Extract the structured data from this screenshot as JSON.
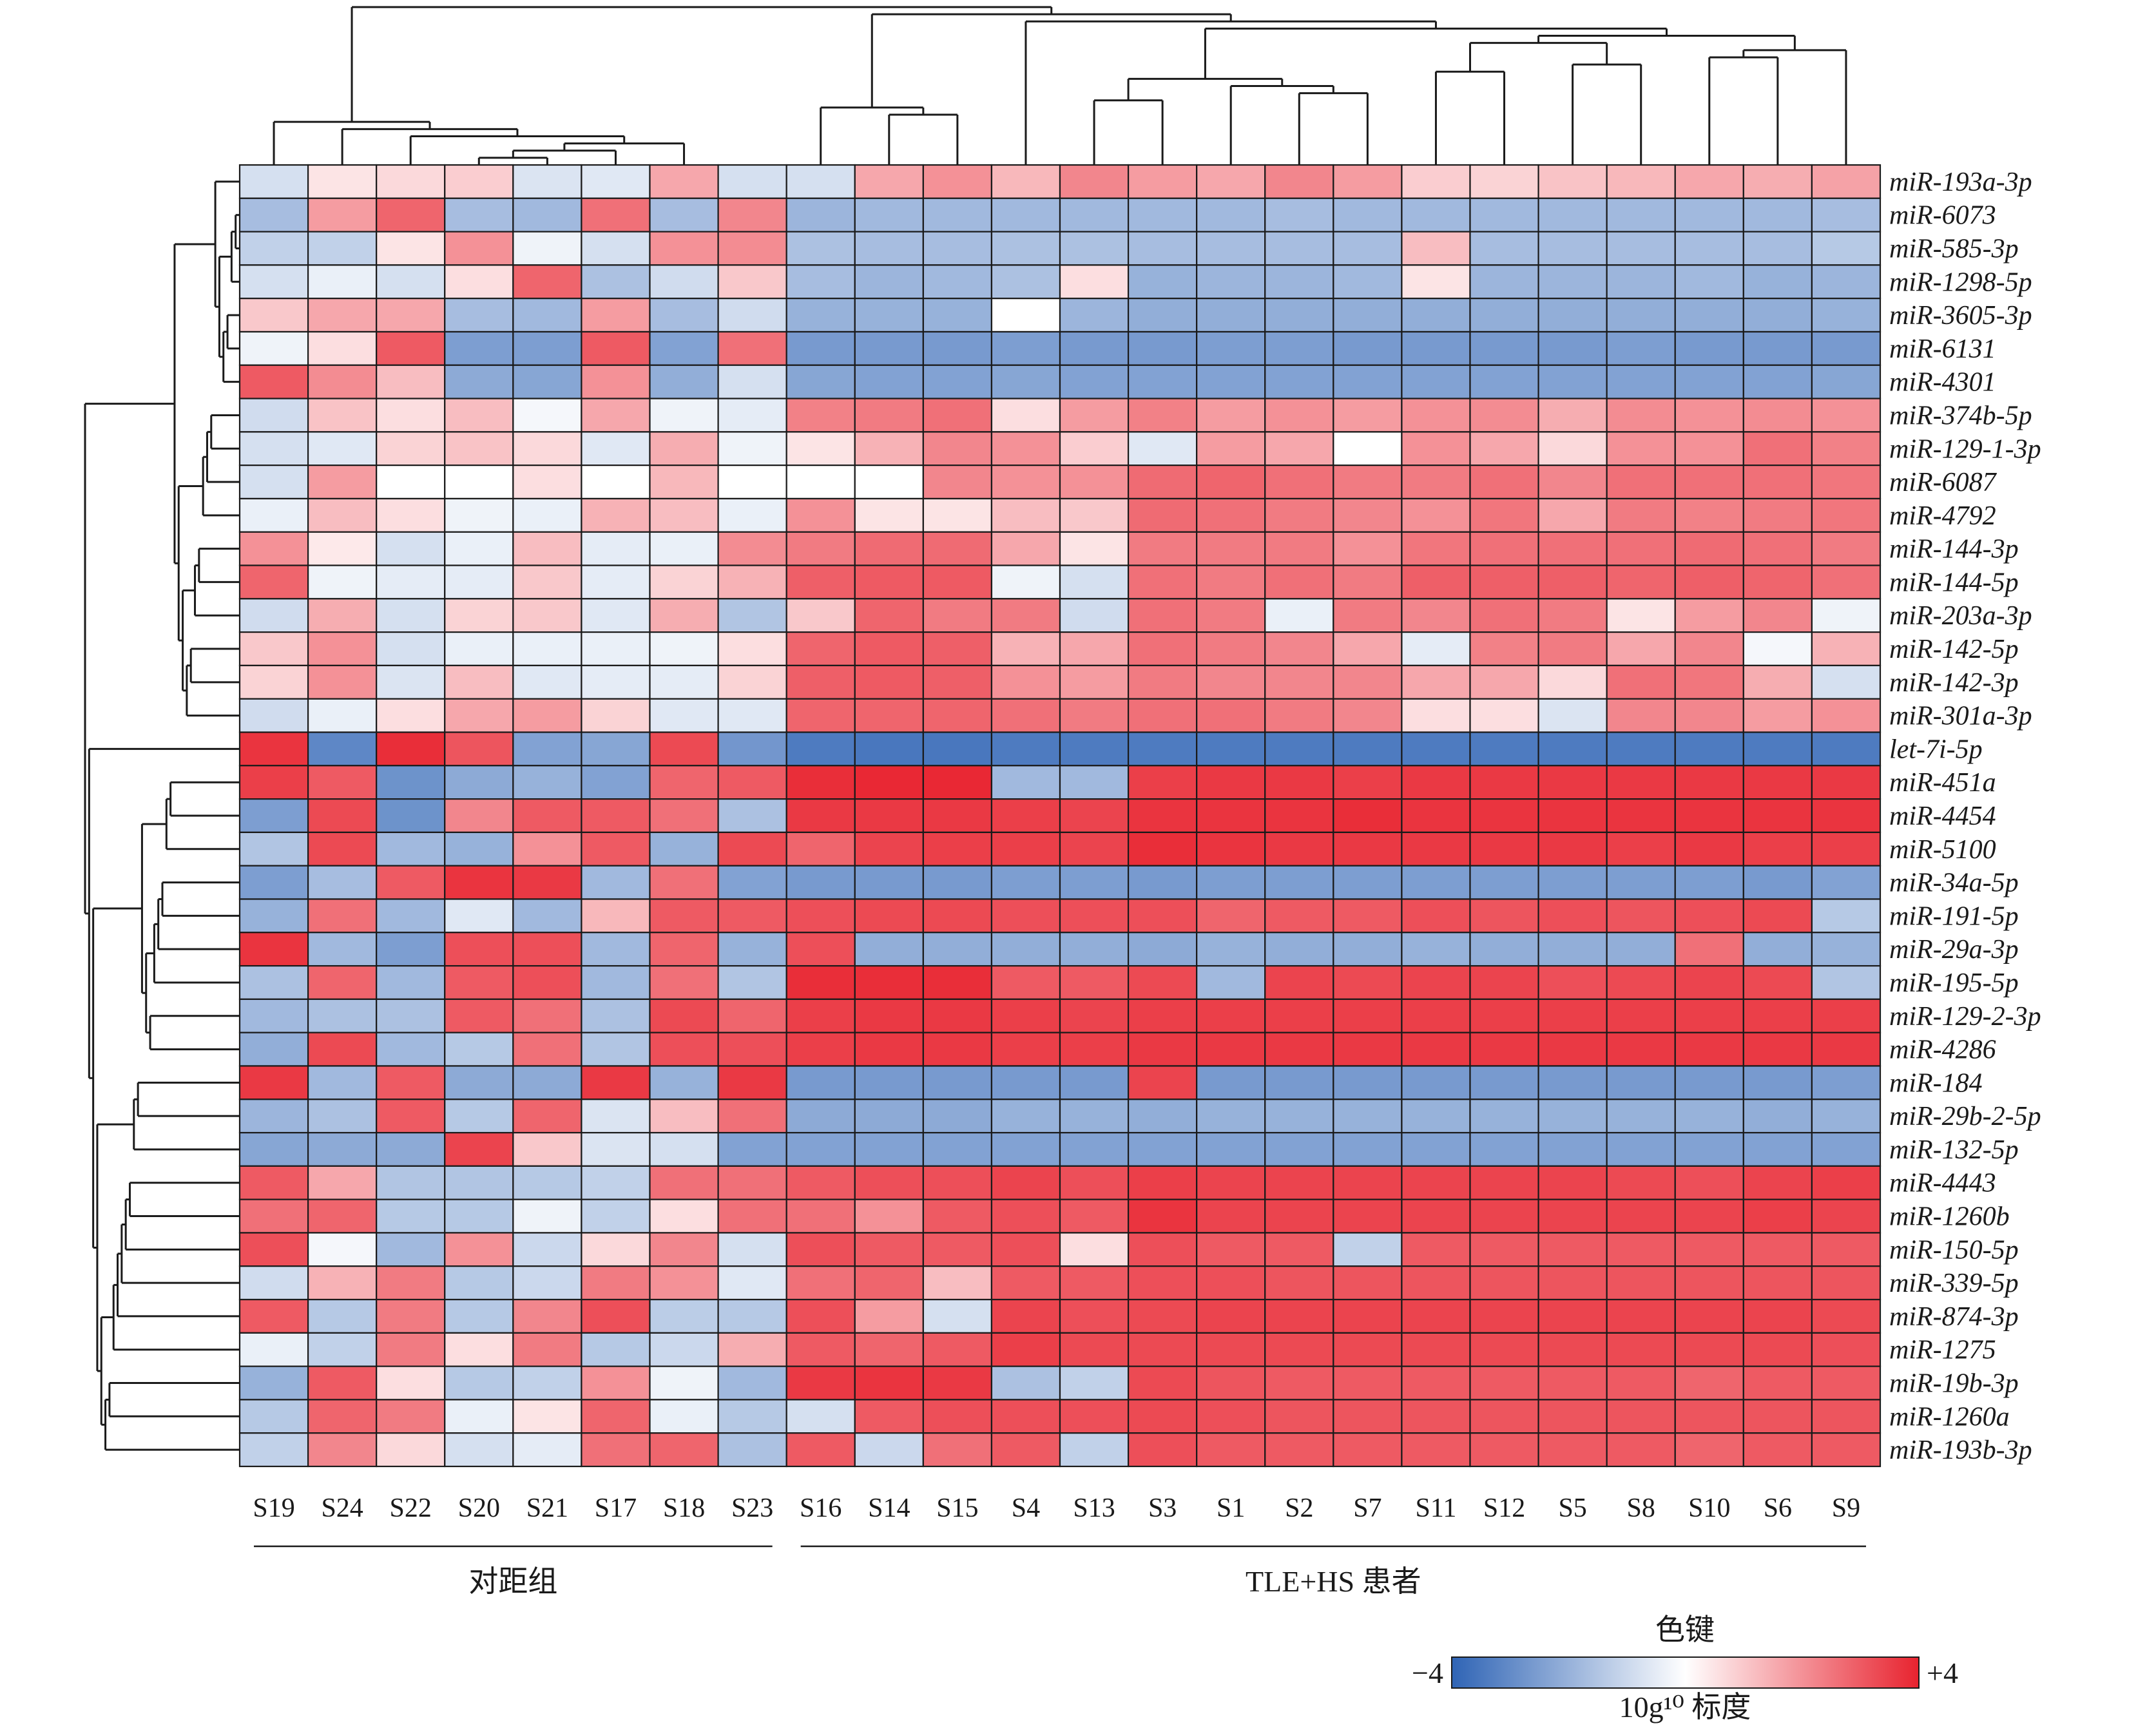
{
  "chart_data": {
    "type": "heatmap",
    "title": "",
    "columns": [
      "S19",
      "S24",
      "S22",
      "S20",
      "S21",
      "S17",
      "S18",
      "S23",
      "S16",
      "S14",
      "S15",
      "S4",
      "S13",
      "S3",
      "S1",
      "S2",
      "S7",
      "S11",
      "S12",
      "S5",
      "S8",
      "S10",
      "S6",
      "S9"
    ],
    "rows": [
      "miR-193a-3p",
      "miR-6073",
      "miR-585-3p",
      "miR-1298-5p",
      "miR-3605-3p",
      "miR-6131",
      "miR-4301",
      "miR-374b-5p",
      "miR-129-1-3p",
      "miR-6087",
      "miR-4792",
      "miR-144-3p",
      "miR-144-5p",
      "miR-203a-3p",
      "miR-142-5p",
      "miR-142-3p",
      "miR-301a-3p",
      "let-7i-5p",
      "miR-451a",
      "miR-4454",
      "miR-5100",
      "miR-34a-5p",
      "miR-191-5p",
      "miR-29a-3p",
      "miR-195-5p",
      "miR-129-2-3p",
      "miR-4286",
      "miR-184",
      "miR-29b-2-5p",
      "miR-132-5p",
      "miR-4443",
      "miR-1260b",
      "miR-150-5p",
      "miR-339-5p",
      "miR-874-3p",
      "miR-1275",
      "miR-19b-3p",
      "miR-1260a",
      "miR-193b-3p"
    ],
    "values": [
      [
        -0.8,
        0.5,
        0.7,
        0.9,
        -0.7,
        -0.6,
        1.6,
        -0.8,
        -0.8,
        1.6,
        2.0,
        1.3,
        2.2,
        1.8,
        1.6,
        2.2,
        1.8,
        0.9,
        0.8,
        1.1,
        1.3,
        1.6,
        1.5,
        1.7
      ],
      [
        -1.7,
        1.8,
        2.8,
        -1.7,
        -1.8,
        2.6,
        -1.7,
        2.2,
        -1.9,
        -1.8,
        -1.8,
        -1.8,
        -1.8,
        -1.8,
        -1.8,
        -1.7,
        -1.8,
        -1.8,
        -1.8,
        -1.8,
        -1.8,
        -1.8,
        -1.8,
        -1.7
      ],
      [
        -1.2,
        -1.2,
        0.5,
        2.0,
        -0.3,
        -0.8,
        2.0,
        2.1,
        -1.6,
        -1.7,
        -1.7,
        -1.6,
        -1.6,
        -1.7,
        -1.7,
        -1.7,
        -1.7,
        1.2,
        -1.7,
        -1.7,
        -1.7,
        -1.7,
        -1.7,
        -1.4
      ],
      [
        -0.8,
        -0.4,
        -0.8,
        0.6,
        2.8,
        -1.6,
        -0.9,
        1.0,
        -1.7,
        -1.9,
        -1.8,
        -1.6,
        0.6,
        -2.0,
        -1.9,
        -1.9,
        -1.8,
        0.5,
        -1.9,
        -1.9,
        -1.9,
        -1.8,
        -2.0,
        -1.9
      ],
      [
        1.0,
        1.6,
        1.6,
        -1.7,
        -1.8,
        1.8,
        -1.7,
        -0.9,
        -2.0,
        -2.0,
        -2.0,
        0.0,
        -1.9,
        -2.1,
        -2.1,
        -2.1,
        -2.1,
        -2.1,
        -2.1,
        -2.1,
        -2.1,
        -2.1,
        -2.1,
        -2.0
      ],
      [
        -0.3,
        0.6,
        3.0,
        -2.5,
        -2.5,
        3.0,
        -2.4,
        2.6,
        -2.6,
        -2.6,
        -2.6,
        -2.5,
        -2.6,
        -2.6,
        -2.5,
        -2.5,
        -2.6,
        -2.6,
        -2.6,
        -2.6,
        -2.5,
        -2.6,
        -2.6,
        -2.6
      ],
      [
        3.0,
        2.1,
        1.2,
        -2.2,
        -2.3,
        2.0,
        -2.1,
        -0.8,
        -2.3,
        -2.4,
        -2.4,
        -2.3,
        -2.4,
        -2.4,
        -2.4,
        -2.4,
        -2.4,
        -2.4,
        -2.4,
        -2.4,
        -2.4,
        -2.4,
        -2.4,
        -2.3
      ],
      [
        -0.9,
        1.1,
        0.6,
        1.2,
        -0.2,
        1.6,
        -0.3,
        -0.5,
        2.3,
        2.4,
        2.6,
        0.6,
        1.8,
        2.3,
        1.8,
        2.0,
        1.8,
        2.0,
        2.1,
        1.5,
        2.1,
        2.0,
        2.1,
        2.0
      ],
      [
        -0.8,
        -0.6,
        0.8,
        1.1,
        0.7,
        -0.6,
        1.5,
        -0.3,
        0.5,
        1.4,
        2.2,
        2.0,
        0.9,
        -0.6,
        1.8,
        1.6,
        0.0,
        2.0,
        1.6,
        0.7,
        2.0,
        2.0,
        2.6,
        2.3
      ],
      [
        -0.8,
        1.8,
        0.0,
        0.0,
        0.6,
        0.0,
        1.3,
        0.0,
        0.0,
        0.0,
        2.2,
        2.0,
        2.0,
        2.7,
        2.8,
        2.6,
        2.4,
        2.4,
        2.6,
        2.2,
        2.6,
        2.6,
        2.6,
        2.5
      ],
      [
        -0.4,
        1.2,
        0.6,
        -0.3,
        -0.4,
        1.4,
        1.2,
        -0.4,
        2.0,
        0.5,
        0.5,
        1.2,
        1.0,
        2.7,
        2.6,
        2.4,
        2.2,
        2.0,
        2.5,
        1.6,
        2.4,
        2.3,
        2.4,
        2.5
      ],
      [
        2.0,
        0.4,
        -0.8,
        -0.4,
        1.2,
        -0.5,
        -0.4,
        2.1,
        2.4,
        2.7,
        2.7,
        1.6,
        0.5,
        2.4,
        2.4,
        2.4,
        2.0,
        2.5,
        2.6,
        2.6,
        2.6,
        2.7,
        2.6,
        2.4
      ],
      [
        2.8,
        -0.3,
        -0.5,
        -0.5,
        1.0,
        -0.5,
        0.8,
        1.4,
        2.9,
        3.0,
        3.0,
        -0.3,
        -0.8,
        2.6,
        2.4,
        2.6,
        2.4,
        2.9,
        2.9,
        2.9,
        2.8,
        2.9,
        2.8,
        2.6
      ],
      [
        -0.9,
        1.5,
        -0.8,
        0.8,
        1.0,
        -0.6,
        1.5,
        -1.5,
        1.0,
        2.8,
        2.4,
        2.4,
        -0.9,
        2.6,
        2.4,
        -0.4,
        2.4,
        2.2,
        2.6,
        2.4,
        0.5,
        1.8,
        2.2,
        -0.3
      ],
      [
        1.0,
        2.0,
        -0.8,
        -0.4,
        -0.4,
        -0.4,
        -0.3,
        0.6,
        2.8,
        3.0,
        2.9,
        1.4,
        1.6,
        2.6,
        2.4,
        2.2,
        1.6,
        -0.5,
        2.3,
        2.4,
        1.6,
        2.2,
        -0.2,
        1.4
      ],
      [
        0.8,
        2.0,
        -0.7,
        1.2,
        -0.6,
        -0.5,
        -0.5,
        0.8,
        2.9,
        3.0,
        2.9,
        2.0,
        1.8,
        2.4,
        2.2,
        2.2,
        2.2,
        1.6,
        1.6,
        0.7,
        2.6,
        2.5,
        1.5,
        -0.8
      ],
      [
        -0.9,
        -0.4,
        0.6,
        1.6,
        1.8,
        0.8,
        -0.6,
        -0.6,
        2.8,
        2.8,
        2.8,
        2.6,
        2.4,
        2.6,
        2.6,
        2.4,
        2.2,
        0.6,
        0.6,
        -0.7,
        2.2,
        2.2,
        1.8,
        2.0
      ],
      [
        3.7,
        -3.1,
        3.8,
        3.1,
        -2.4,
        -2.3,
        3.3,
        -2.7,
        -3.4,
        -3.5,
        -3.5,
        -3.4,
        -3.4,
        -3.4,
        -3.4,
        -3.4,
        -3.4,
        -3.4,
        -3.4,
        -3.4,
        -3.4,
        -3.4,
        -3.4,
        -3.4
      ],
      [
        3.5,
        3.0,
        -2.8,
        -2.2,
        -2.0,
        -2.4,
        2.8,
        3.0,
        3.8,
        3.9,
        3.9,
        -1.8,
        -1.8,
        3.5,
        3.6,
        3.6,
        3.5,
        3.6,
        3.6,
        3.6,
        3.6,
        3.6,
        3.6,
        3.6
      ],
      [
        -2.5,
        3.3,
        -2.8,
        2.2,
        3.0,
        3.0,
        2.6,
        -1.6,
        3.6,
        3.6,
        3.6,
        3.5,
        3.4,
        3.7,
        3.7,
        3.7,
        3.8,
        3.7,
        3.7,
        3.7,
        3.7,
        3.7,
        3.7,
        3.7
      ],
      [
        -1.5,
        3.3,
        -1.8,
        -2.0,
        2.0,
        3.0,
        -2.0,
        3.3,
        2.8,
        3.4,
        3.5,
        3.5,
        3.4,
        3.8,
        3.7,
        3.6,
        3.6,
        3.6,
        3.6,
        3.6,
        3.5,
        3.6,
        3.5,
        3.5
      ],
      [
        -2.5,
        -1.7,
        3.0,
        3.7,
        3.6,
        -1.8,
        2.6,
        -2.4,
        -2.6,
        -2.6,
        -2.6,
        -2.5,
        -2.5,
        -2.6,
        -2.5,
        -2.5,
        -2.5,
        -2.5,
        -2.5,
        -2.5,
        -2.5,
        -2.5,
        -2.6,
        -2.4
      ],
      [
        -2.0,
        2.6,
        -1.8,
        -0.6,
        -1.8,
        1.3,
        3.0,
        3.0,
        3.2,
        3.3,
        3.3,
        3.2,
        3.2,
        3.2,
        2.8,
        3.0,
        3.0,
        3.2,
        3.1,
        3.2,
        3.1,
        3.2,
        3.3,
        -1.4
      ],
      [
        3.7,
        -1.8,
        -2.5,
        3.2,
        3.2,
        -1.8,
        2.8,
        -2.0,
        3.2,
        -2.1,
        -2.1,
        -2.1,
        -2.1,
        -2.2,
        -2.0,
        -2.1,
        -2.1,
        -2.0,
        -2.1,
        -2.1,
        -2.1,
        2.6,
        -2.1,
        -2.0
      ],
      [
        -1.6,
        2.8,
        -1.8,
        3.0,
        3.2,
        -1.8,
        2.6,
        -1.5,
        3.8,
        3.8,
        3.8,
        3.0,
        3.0,
        3.3,
        -1.8,
        3.4,
        3.3,
        3.4,
        3.4,
        3.2,
        3.3,
        3.4,
        3.3,
        -1.5
      ],
      [
        -1.8,
        -1.6,
        -1.6,
        3.0,
        2.6,
        -1.6,
        3.3,
        2.8,
        3.5,
        3.6,
        3.6,
        3.5,
        3.4,
        3.5,
        3.5,
        3.5,
        3.5,
        3.5,
        3.5,
        3.5,
        3.5,
        3.5,
        3.5,
        3.5
      ],
      [
        -2.1,
        3.3,
        -1.8,
        -1.4,
        2.6,
        -1.5,
        3.2,
        3.2,
        3.5,
        3.6,
        3.6,
        3.5,
        3.5,
        3.6,
        3.6,
        3.6,
        3.6,
        3.6,
        3.6,
        3.6,
        3.6,
        3.6,
        3.6,
        3.6
      ],
      [
        3.6,
        -1.8,
        3.0,
        -2.2,
        -2.2,
        3.6,
        -2.0,
        3.6,
        -2.6,
        -2.6,
        -2.6,
        -2.6,
        -2.6,
        3.4,
        -2.6,
        -2.6,
        -2.6,
        -2.6,
        -2.6,
        -2.6,
        -2.6,
        -2.6,
        -2.6,
        -2.5
      ],
      [
        -1.9,
        -1.6,
        3.0,
        -1.4,
        2.8,
        -0.7,
        1.2,
        2.6,
        -2.2,
        -2.2,
        -2.2,
        -2.0,
        -2.0,
        -2.1,
        -2.0,
        -2.0,
        -2.0,
        -2.0,
        -2.0,
        -2.0,
        -2.0,
        -2.0,
        -2.1,
        -2.0
      ],
      [
        -2.3,
        -2.2,
        -2.2,
        3.4,
        1.0,
        -0.7,
        -0.8,
        -2.4,
        -2.4,
        -2.4,
        -2.4,
        -2.4,
        -2.4,
        -2.4,
        -2.4,
        -2.4,
        -2.4,
        -2.4,
        -2.4,
        -2.4,
        -2.4,
        -2.4,
        -2.4,
        -2.4
      ],
      [
        3.0,
        1.6,
        -1.5,
        -1.5,
        -1.4,
        -1.2,
        2.6,
        2.6,
        3.0,
        3.2,
        3.2,
        3.4,
        3.2,
        3.5,
        3.4,
        3.4,
        3.4,
        3.4,
        3.4,
        3.4,
        3.3,
        3.2,
        3.4,
        3.5
      ],
      [
        2.6,
        2.8,
        -1.4,
        -1.4,
        -0.3,
        -1.2,
        0.6,
        2.6,
        2.6,
        2.0,
        3.0,
        3.2,
        3.0,
        3.7,
        3.4,
        3.4,
        3.4,
        3.4,
        3.4,
        3.4,
        3.4,
        3.4,
        3.5,
        3.4
      ],
      [
        3.2,
        -0.2,
        -1.8,
        2.0,
        -1.0,
        0.7,
        2.2,
        -0.8,
        3.2,
        3.0,
        3.0,
        3.2,
        0.6,
        3.2,
        3.0,
        3.0,
        -1.2,
        3.0,
        3.0,
        3.0,
        3.0,
        3.0,
        3.0,
        3.0
      ],
      [
        -0.9,
        1.4,
        2.4,
        -1.4,
        -1.0,
        2.4,
        2.0,
        -0.6,
        2.6,
        2.8,
        1.2,
        3.0,
        3.0,
        3.2,
        3.2,
        3.1,
        3.1,
        3.1,
        3.1,
        3.1,
        3.1,
        3.1,
        3.1,
        3.1
      ],
      [
        3.0,
        -1.4,
        2.4,
        -1.4,
        2.2,
        3.2,
        -1.3,
        -1.4,
        3.2,
        1.8,
        -0.8,
        3.4,
        3.2,
        3.3,
        3.4,
        3.4,
        3.4,
        3.4,
        3.4,
        3.4,
        3.4,
        3.4,
        3.4,
        3.3
      ],
      [
        -0.4,
        -1.2,
        2.4,
        0.6,
        2.4,
        -1.4,
        -1.0,
        1.5,
        3.0,
        2.8,
        3.0,
        3.5,
        3.3,
        3.3,
        3.3,
        3.3,
        3.3,
        3.3,
        3.3,
        3.3,
        3.3,
        3.3,
        3.3,
        3.2
      ],
      [
        -2.0,
        3.0,
        0.6,
        -1.4,
        -1.2,
        2.0,
        -0.3,
        -1.8,
        3.6,
        3.7,
        3.6,
        -1.6,
        -1.2,
        3.3,
        3.1,
        3.0,
        3.0,
        3.0,
        3.0,
        3.0,
        3.0,
        2.8,
        3.0,
        3.0
      ],
      [
        -1.4,
        2.8,
        2.4,
        -0.4,
        0.5,
        2.8,
        -0.4,
        -1.4,
        -0.8,
        3.0,
        3.2,
        3.2,
        3.2,
        3.3,
        3.2,
        3.1,
        3.1,
        3.1,
        3.1,
        3.1,
        3.1,
        3.1,
        3.1,
        3.1
      ],
      [
        -1.2,
        2.2,
        0.7,
        -0.8,
        -0.5,
        2.6,
        2.8,
        -1.6,
        3.0,
        -1.0,
        2.6,
        3.0,
        -1.2,
        3.2,
        3.0,
        3.0,
        3.0,
        3.0,
        3.0,
        3.0,
        3.0,
        2.8,
        3.0,
        3.0
      ]
    ],
    "groups": [
      {
        "label": "对距组",
        "from": "S19",
        "to": "S23"
      },
      {
        "label": "TLE+HS 患者",
        "from": "S16",
        "to": "S9"
      }
    ],
    "color_key": {
      "title": "色键",
      "min_label": "−4",
      "max_label": "+4",
      "scale_label": "10g¹⁰ 标度",
      "min": -4,
      "max": 4,
      "low_color": "#2f64b5",
      "mid_color": "#ffffff",
      "high_color": "#e8232f"
    },
    "col_dendrogram": {
      "merges": [
        [
          2,
          3
        ],
        [
          1,
          9
        ],
        [
          4,
          5
        ],
        [
          6,
          8
        ],
        [
          12,
          13
        ],
        [
          10,
          11
        ],
        [
          14,
          15
        ],
        [
          21,
          22
        ],
        [
          18,
          19
        ],
        [
          20,
          17
        ],
        [
          23,
          7
        ],
        [
          27,
          16
        ],
        [
          28,
          -1
        ],
        [
          -2,
          -3
        ],
        [
          29,
          30
        ],
        [
          24,
          25
        ],
        [
          32,
          31
        ],
        [
          33,
          -4
        ],
        [
          34,
          -5
        ],
        [
          35,
          -6
        ],
        [
          -7,
          -8
        ],
        [
          37,
          -9
        ],
        [
          38,
          -10
        ]
      ]
    },
    "row_dendrogram": {
      "merges": [
        [
          2,
          3
        ],
        [
          4,
          5
        ],
        [
          6,
          7
        ],
        [
          1,
          -1
        ],
        [
          8,
          9
        ],
        [
          10,
          11
        ],
        [
          12,
          13
        ],
        [
          14,
          15
        ],
        [
          16,
          17
        ],
        [
          -5,
          -6
        ],
        [
          -7,
          -8
        ],
        [
          -9,
          -2
        ],
        [
          -3,
          -4
        ],
        [
          -10,
          -11
        ],
        [
          -12,
          -13
        ],
        [
          -14,
          -15
        ],
        [
          -16,
          -17
        ],
        [
          19,
          20
        ],
        [
          21,
          22
        ],
        [
          23,
          24
        ],
        [
          25,
          26
        ],
        [
          27,
          28
        ],
        [
          29,
          30
        ],
        [
          31,
          32
        ],
        [
          33,
          34
        ],
        [
          35,
          36
        ],
        [
          37,
          38
        ],
        [
          39,
          -18
        ],
        [
          -19,
          -20
        ],
        [
          -21,
          -22
        ],
        [
          -23,
          -24
        ],
        [
          -25,
          -26
        ],
        [
          -27,
          -28
        ],
        [
          -29,
          -30
        ],
        [
          -31,
          -32
        ],
        [
          -33,
          -34
        ],
        [
          -35,
          -36
        ],
        [
          -37,
          18
        ],
        [
          -38,
          -39
        ]
      ]
    }
  }
}
